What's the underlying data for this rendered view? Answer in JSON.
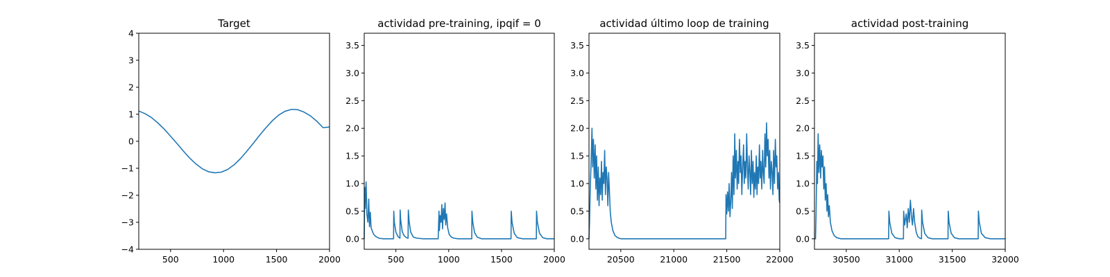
{
  "chart_data": [
    {
      "type": "line",
      "title": "Target",
      "xlim": [
        200,
        2000
      ],
      "ylim": [
        -4,
        4
      ],
      "xticks": [
        500,
        1000,
        1500,
        2000
      ],
      "yticks": [
        -4,
        -3,
        -2,
        -1,
        0,
        1,
        2,
        3,
        4
      ],
      "xtick_labels": [
        "500",
        "1000",
        "1500",
        "2000"
      ],
      "ytick_labels": [
        "−4",
        "−3",
        "−2",
        "−1",
        "0",
        "1",
        "2",
        "3",
        "4"
      ],
      "grid": false,
      "color": "#1f77b4",
      "series": [
        {
          "x": [
            200,
            260,
            320,
            380,
            440,
            500,
            560,
            620,
            680,
            740,
            800,
            860,
            920,
            980,
            1040,
            1100,
            1160,
            1220,
            1280,
            1340,
            1400,
            1460,
            1520,
            1580,
            1640,
            1700,
            1760,
            1820,
            1880,
            1940,
            2000
          ],
          "y": [
            1.12,
            1.02,
            0.88,
            0.68,
            0.45,
            0.19,
            -0.08,
            -0.36,
            -0.62,
            -0.84,
            -1.02,
            -1.13,
            -1.17,
            -1.14,
            -1.04,
            -0.87,
            -0.64,
            -0.37,
            -0.08,
            0.22,
            0.5,
            0.76,
            0.97,
            1.11,
            1.18,
            1.17,
            1.08,
            0.94,
            0.74,
            0.5,
            0.53
          ]
        }
      ]
    },
    {
      "type": "line",
      "title": "actividad pre-training, ipqif = 0",
      "xlim": [
        200,
        2000
      ],
      "ylim": [
        -0.19,
        3.72
      ],
      "xticks": [
        500,
        1000,
        1500,
        2000
      ],
      "yticks": [
        0,
        0.5,
        1.0,
        1.5,
        2.0,
        2.5,
        3.0,
        3.5
      ],
      "xtick_labels": [
        "500",
        "1000",
        "1500",
        "2000"
      ],
      "ytick_labels": [
        "0.0",
        "0.5",
        "1.0",
        "1.5",
        "2.0",
        "2.5",
        "3.0",
        "3.5"
      ],
      "grid": false,
      "color": "#1f77b4",
      "series": [
        {
          "x": [
            200,
            205,
            210,
            218,
            225,
            235,
            243,
            250,
            258,
            265,
            275,
            290,
            310,
            340,
            380,
            430,
            478,
            480,
            485,
            500,
            520,
            538,
            540,
            545,
            560,
            580,
            600,
            615,
            618,
            625,
            640,
            665,
            700,
            760,
            840,
            900,
            908,
            912,
            920,
            928,
            935,
            942,
            950,
            958,
            965,
            972,
            980,
            990,
            1005,
            1025,
            1050,
            1090,
            1140,
            1190,
            1218,
            1220,
            1228,
            1245,
            1270,
            1310,
            1380,
            1460,
            1540,
            1590,
            1592,
            1600,
            1620,
            1650,
            1700,
            1760,
            1800,
            1830,
            1832,
            1840,
            1860,
            1890,
            1930,
            2000
          ],
          "y": [
            0.0,
            0.93,
            0.55,
            1.03,
            0.45,
            0.3,
            0.72,
            0.22,
            0.48,
            0.2,
            0.15,
            0.08,
            0.04,
            0.01,
            0.0,
            0.0,
            0.0,
            0.5,
            0.3,
            0.12,
            0.04,
            0.01,
            0.52,
            0.35,
            0.13,
            0.05,
            0.02,
            0.01,
            0.52,
            0.32,
            0.12,
            0.03,
            0.01,
            0.0,
            0.0,
            0.0,
            0.5,
            0.15,
            0.42,
            0.3,
            0.62,
            0.18,
            0.55,
            0.35,
            0.65,
            0.25,
            0.45,
            0.2,
            0.08,
            0.03,
            0.01,
            0.0,
            0.0,
            0.0,
            0.0,
            0.5,
            0.3,
            0.11,
            0.03,
            0.0,
            0.0,
            0.0,
            0.0,
            0.0,
            0.5,
            0.3,
            0.1,
            0.02,
            0.0,
            0.0,
            0.0,
            0.0,
            0.5,
            0.3,
            0.1,
            0.02,
            0.0,
            0.0
          ]
        }
      ]
    },
    {
      "type": "line",
      "title": "actividad último loop de training",
      "xlim": [
        20200,
        22000
      ],
      "ylim": [
        -0.19,
        3.72
      ],
      "xticks": [
        20500,
        21000,
        21500,
        22000
      ],
      "yticks": [
        0,
        0.5,
        1.0,
        1.5,
        2.0,
        2.5,
        3.0,
        3.5
      ],
      "xtick_labels": [
        "20500",
        "21000",
        "21500",
        "22000"
      ],
      "ytick_labels": [
        "0.0",
        "0.5",
        "1.0",
        "1.5",
        "2.0",
        "2.5",
        "3.0",
        "3.5"
      ],
      "grid": false,
      "color": "#1f77b4",
      "series": [
        {
          "x": [
            20200,
            20205,
            20212,
            20220,
            20228,
            20235,
            20242,
            20250,
            20258,
            20265,
            20272,
            20280,
            20288,
            20295,
            20302,
            20310,
            20318,
            20325,
            20332,
            20340,
            20348,
            20355,
            20362,
            20370,
            20378,
            20385,
            20392,
            20400,
            20410,
            20425,
            20445,
            20470,
            20500,
            20560,
            20700,
            21000,
            21300,
            21490,
            21493,
            21500,
            21507,
            21515,
            21522,
            21530,
            21538,
            21545,
            21552,
            21560,
            21568,
            21575,
            21582,
            21590,
            21598,
            21605,
            21612,
            21620,
            21628,
            21635,
            21642,
            21650,
            21658,
            21665,
            21672,
            21680,
            21688,
            21695,
            21702,
            21710,
            21718,
            21725,
            21732,
            21740,
            21748,
            21755,
            21762,
            21770,
            21778,
            21785,
            21792,
            21800,
            21808,
            21815,
            21822,
            21830,
            21838,
            21845,
            21852,
            21860,
            21868,
            21875,
            21882,
            21890,
            21898,
            21905,
            21912,
            21920,
            21928,
            21935,
            21942,
            21950,
            21958,
            21965,
            21972,
            21980,
            21988,
            21995,
            22000
          ],
          "y": [
            0.0,
            0.3,
            0.9,
            1.4,
            2.0,
            1.3,
            1.8,
            1.1,
            1.7,
            0.9,
            1.5,
            0.7,
            1.3,
            0.6,
            1.1,
            0.8,
            1.4,
            0.7,
            1.2,
            1.0,
            1.6,
            0.8,
            1.3,
            1.1,
            0.6,
            1.2,
            0.9,
            0.5,
            0.3,
            0.15,
            0.06,
            0.02,
            0.0,
            0.0,
            0.0,
            0.0,
            0.0,
            0.0,
            0.8,
            0.45,
            0.85,
            0.5,
            1.0,
            0.4,
            0.7,
            1.2,
            0.55,
            1.5,
            0.8,
            1.9,
            1.1,
            1.6,
            0.9,
            1.4,
            1.0,
            1.8,
            1.2,
            1.5,
            0.8,
            1.3,
            1.7,
            1.0,
            1.4,
            1.1,
            1.9,
            1.3,
            0.9,
            1.5,
            1.2,
            0.8,
            1.6,
            1.0,
            1.4,
            0.75,
            1.2,
            0.9,
            1.5,
            0.8,
            1.3,
            1.0,
            1.7,
            1.1,
            1.4,
            0.9,
            1.6,
            1.2,
            1.0,
            1.9,
            1.3,
            2.1,
            1.5,
            1.8,
            1.1,
            1.6,
            0.9,
            1.4,
            1.2,
            0.8,
            1.6,
            1.0,
            1.8,
            1.3,
            1.5,
            0.9,
            1.2,
            0.7,
            0.65
          ]
        }
      ]
    },
    {
      "type": "line",
      "title": "actividad post-training",
      "xlim": [
        30200,
        32000
      ],
      "ylim": [
        -0.19,
        3.72
      ],
      "xticks": [
        30500,
        31000,
        31500,
        32000
      ],
      "yticks": [
        0,
        0.5,
        1.0,
        1.5,
        2.0,
        2.5,
        3.0,
        3.5
      ],
      "xtick_labels": [
        "30500",
        "31000",
        "31500",
        "32000"
      ],
      "ytick_labels": [
        "0.0",
        "0.5",
        "1.0",
        "1.5",
        "2.0",
        "2.5",
        "3.0",
        "3.5"
      ],
      "grid": false,
      "color": "#1f77b4",
      "series": [
        {
          "x": [
            30200,
            30210,
            30215,
            30222,
            30228,
            30235,
            30242,
            30250,
            30258,
            30265,
            30272,
            30280,
            30288,
            30295,
            30302,
            30310,
            30318,
            30325,
            30332,
            30340,
            30350,
            30365,
            30385,
            30410,
            30450,
            30520,
            30650,
            30800,
            30900,
            30902,
            30910,
            30930,
            30960,
            31000,
            31040,
            31042,
            31050,
            31065,
            31075,
            31085,
            31095,
            31105,
            31115,
            31125,
            31135,
            31145,
            31160,
            31175,
            31195,
            31210,
            31212,
            31220,
            31240,
            31270,
            31310,
            31370,
            31440,
            31460,
            31462,
            31470,
            31490,
            31520,
            31560,
            31620,
            31700,
            31745,
            31747,
            31755,
            31775,
            31810,
            31860,
            31950,
            32000
          ],
          "y": [
            0.0,
            0.0,
            0.45,
            1.4,
            1.0,
            1.9,
            1.2,
            1.7,
            1.1,
            1.6,
            1.3,
            1.5,
            0.9,
            1.3,
            0.7,
            1.0,
            0.5,
            0.8,
            0.4,
            0.6,
            0.3,
            0.15,
            0.06,
            0.02,
            0.0,
            0.0,
            0.0,
            0.0,
            0.0,
            0.5,
            0.3,
            0.1,
            0.02,
            0.0,
            0.0,
            0.5,
            0.25,
            0.45,
            0.2,
            0.55,
            0.3,
            0.7,
            0.4,
            0.25,
            0.55,
            0.3,
            0.12,
            0.04,
            0.01,
            0.0,
            0.52,
            0.3,
            0.1,
            0.02,
            0.0,
            0.0,
            0.0,
            0.0,
            0.5,
            0.3,
            0.1,
            0.02,
            0.0,
            0.0,
            0.0,
            0.0,
            0.5,
            0.3,
            0.1,
            0.02,
            0.0,
            0.0,
            0.0
          ]
        }
      ]
    }
  ]
}
